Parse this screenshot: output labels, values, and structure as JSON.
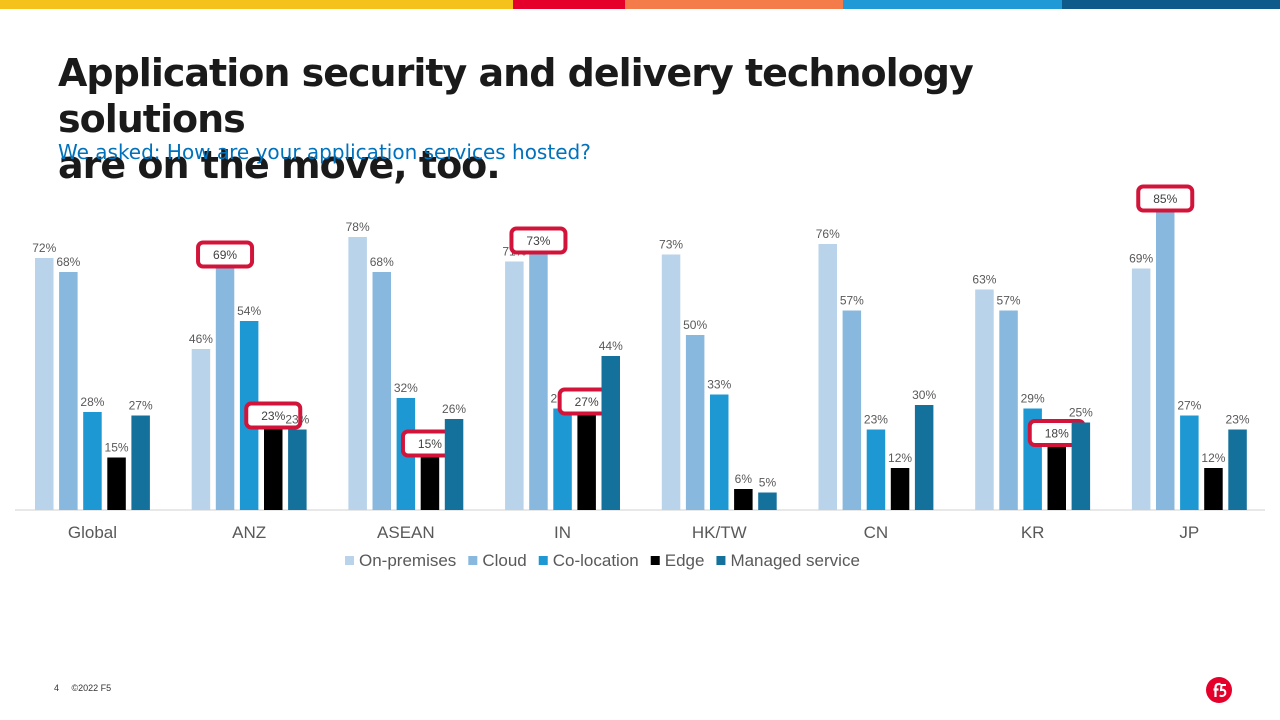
{
  "header": {
    "title_line1": "Application security and delivery technology solutions",
    "title_line2": "are on the move, too.",
    "subtitle": "We asked: How are your application services hosted?"
  },
  "brand": {
    "bar_colors": [
      "#f5c21b",
      "#e4002b",
      "#f47b4a",
      "#1f9ad6",
      "#0e5a8a"
    ],
    "highlight_color": "#d2143a",
    "logo_color": "#e4002b",
    "logo_icon": "f5-logo-icon"
  },
  "footer": {
    "page_number": "4",
    "copyright": "©2022 F5"
  },
  "chart_data": {
    "type": "bar",
    "categories": [
      "Global",
      "ANZ",
      "ASEAN",
      "IN",
      "HK/TW",
      "CN",
      "KR",
      "JP"
    ],
    "series": [
      {
        "name": "On-premises",
        "color": "#b8d3ea",
        "values": [
          72,
          46,
          78,
          71,
          73,
          76,
          63,
          69
        ]
      },
      {
        "name": "Cloud",
        "color": "#88b8de",
        "values": [
          68,
          69,
          68,
          73,
          50,
          57,
          57,
          85
        ]
      },
      {
        "name": "Co-location",
        "color": "#1d98d3",
        "values": [
          28,
          54,
          32,
          29,
          33,
          23,
          29,
          27
        ]
      },
      {
        "name": "Edge",
        "color": "#000000",
        "values": [
          15,
          23,
          15,
          27,
          6,
          12,
          18,
          12
        ]
      },
      {
        "name": "Managed service",
        "color": "#14719c",
        "values": [
          27,
          23,
          26,
          44,
          5,
          30,
          25,
          23
        ]
      }
    ],
    "value_suffix": "%",
    "ylim": [
      0,
      100
    ],
    "grid": false,
    "legend_position": "bottom",
    "highlighted": [
      {
        "category": "ANZ",
        "series": "Cloud"
      },
      {
        "category": "ANZ",
        "series": "Edge"
      },
      {
        "category": "ASEAN",
        "series": "Edge"
      },
      {
        "category": "IN",
        "series": "Cloud"
      },
      {
        "category": "IN",
        "series": "Edge"
      },
      {
        "category": "KR",
        "series": "Edge"
      },
      {
        "category": "JP",
        "series": "Cloud"
      }
    ]
  }
}
